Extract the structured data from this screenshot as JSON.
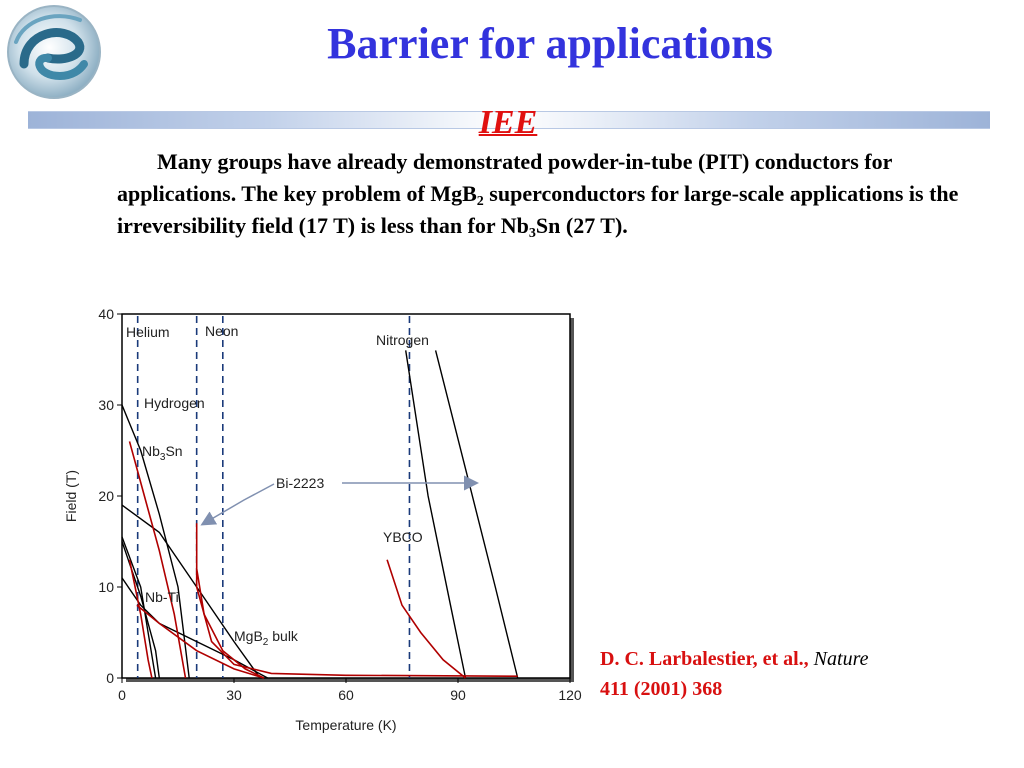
{
  "title": "Barrier for applications",
  "subtitle_tag": "IEE",
  "paragraph": {
    "p1": "Many groups have already demonstrated powder-in-tube (PIT) conductors for applications. The key problem of MgB",
    "sub1": "2",
    "p2": " superconductors for large-scale applications is the irreversibility field (17 T) is less than for Nb",
    "sub2": "3",
    "p3": "Sn (27 T)."
  },
  "citation": {
    "authors": "D. C. Larbalestier, et al.,",
    "journal": "Nature",
    "reference": "411 (2001) 368"
  },
  "colors": {
    "title": "#3333dd",
    "accent_red": "#d81010",
    "cryogen_line": "#1a3a7a",
    "red_curves": "#b00000",
    "arrow": "#8090b0"
  },
  "icons": {
    "logo": "swirl-e-logo-icon"
  },
  "chart_data": {
    "type": "line",
    "xlabel": "Temperature (K)",
    "ylabel": "Field (T)",
    "xlim": [
      0,
      120
    ],
    "ylim": [
      0,
      40
    ],
    "xticks": [
      0,
      30,
      60,
      90,
      120
    ],
    "yticks": [
      0,
      10,
      20,
      30,
      40
    ],
    "cryogens": [
      {
        "name": "Helium",
        "temperature": 4.2
      },
      {
        "name": "Hydrogen",
        "temperature": 20
      },
      {
        "name": "Neon",
        "temperature": 27
      },
      {
        "name": "Nitrogen",
        "temperature": 77
      }
    ],
    "labels": {
      "helium": "Helium",
      "neon": "Neon",
      "nitrogen": "Nitrogen",
      "hydrogen": "Hydrogen",
      "nb3sn": "Nb",
      "nb3sn_sub": "3",
      "nb3sn_tail": "Sn",
      "nbti": "Nb-Ti",
      "mgb2": "MgB",
      "mgb2_sub": "2",
      "mgb2_tail": " bulk",
      "bi2223": "Bi-2223",
      "ybco": "YBCO"
    },
    "series": [
      {
        "color": "#000000",
        "points": [
          [
            0,
            30
          ],
          [
            5,
            25
          ],
          [
            10,
            18
          ],
          [
            15,
            10
          ],
          [
            18,
            0
          ]
        ]
      },
      {
        "color": "#000000",
        "points": [
          [
            0,
            19
          ],
          [
            10,
            16
          ],
          [
            20,
            10
          ],
          [
            30,
            4
          ],
          [
            37,
            0
          ]
        ]
      },
      {
        "color": "#000000",
        "points": [
          [
            0,
            15.5
          ],
          [
            5,
            10
          ],
          [
            7,
            5
          ],
          [
            9,
            0
          ]
        ]
      },
      {
        "color": "#000000",
        "points": [
          [
            0,
            15
          ],
          [
            5,
            9
          ],
          [
            9,
            3
          ],
          [
            10,
            0
          ]
        ]
      },
      {
        "color": "#000000",
        "points": [
          [
            0,
            11
          ],
          [
            5,
            8
          ],
          [
            10,
            6
          ],
          [
            20,
            4
          ],
          [
            30,
            2
          ],
          [
            39,
            0
          ]
        ]
      },
      {
        "color": "#000000",
        "points": [
          [
            76,
            36
          ],
          [
            82,
            20
          ],
          [
            88,
            8
          ],
          [
            92,
            0
          ]
        ]
      },
      {
        "color": "#000000",
        "points": [
          [
            84,
            36
          ],
          [
            92,
            23
          ],
          [
            100,
            10
          ],
          [
            106,
            0
          ]
        ]
      },
      {
        "color": "#b00000",
        "points": [
          [
            2,
            26
          ],
          [
            6,
            20
          ],
          [
            10,
            14
          ],
          [
            14,
            7
          ],
          [
            17,
            0
          ]
        ]
      },
      {
        "color": "#b00000",
        "points": [
          [
            2,
            13
          ],
          [
            5,
            7
          ],
          [
            7,
            2
          ],
          [
            8,
            0
          ]
        ]
      },
      {
        "color": "#b00000",
        "points": [
          [
            20,
            12
          ],
          [
            22,
            7
          ],
          [
            27,
            3
          ],
          [
            33,
            1
          ],
          [
            38,
            0
          ]
        ]
      },
      {
        "color": "#b00000",
        "points": [
          [
            4,
            8
          ],
          [
            10,
            6
          ],
          [
            20,
            3
          ],
          [
            30,
            1
          ],
          [
            38,
            0
          ]
        ]
      },
      {
        "color": "#b00000",
        "points": [
          [
            20,
            17
          ],
          [
            20,
            10
          ],
          [
            24,
            4
          ],
          [
            30,
            1.5
          ],
          [
            40,
            0.5
          ],
          [
            60,
            0.3
          ],
          [
            106,
            0.2
          ]
        ]
      },
      {
        "color": "#b00000",
        "points": [
          [
            71,
            13
          ],
          [
            75,
            8
          ],
          [
            80,
            5
          ],
          [
            86,
            2
          ],
          [
            92,
            0
          ]
        ]
      }
    ]
  }
}
